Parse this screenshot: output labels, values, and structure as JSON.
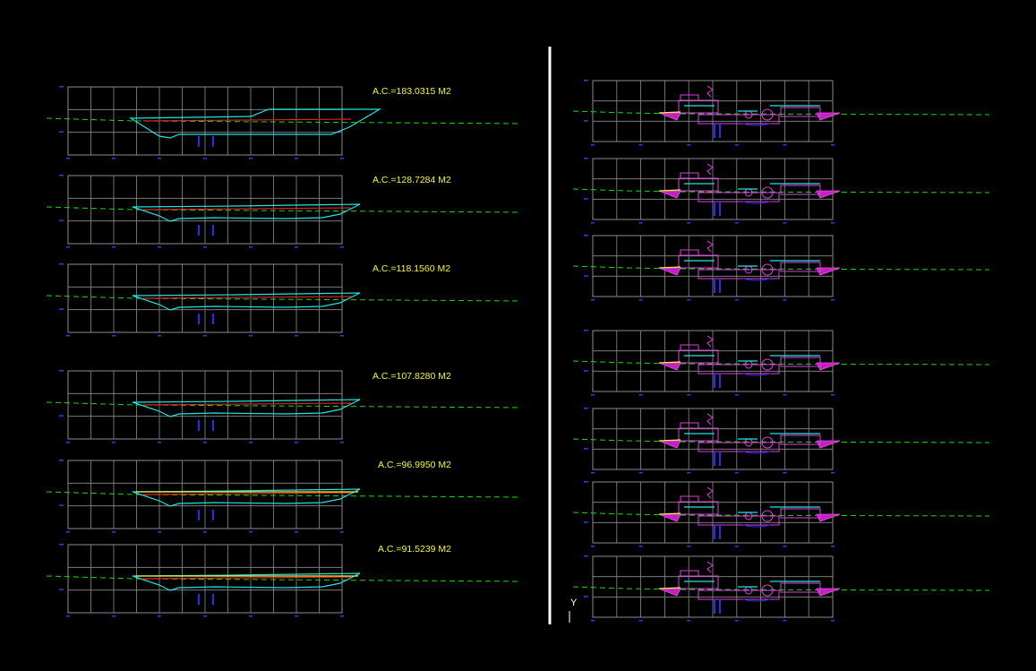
{
  "drawing": {
    "background": "#000000",
    "colors": {
      "grid": "#8c8c8c",
      "ground": "#19d819",
      "section_outline": "#22e3e3",
      "rasante": "#e32222",
      "fill_line": "#f0f03c",
      "labels": "#f5f53c",
      "detail": "#e040e0",
      "annotation": "#2a2af0"
    },
    "left_sections": [
      {
        "label": "A.C.=183.0315  M2"
      },
      {
        "label": "A.C.=128.7284  M2"
      },
      {
        "label": "A.C.=118.1560  M2"
      },
      {
        "label": "A.C.=107.8280  M2"
      },
      {
        "label": "A.C.=96.9950  M2"
      },
      {
        "label": "A.C.=91.5239  M2"
      }
    ],
    "right_sections_count": 7,
    "ucs_icon": {
      "axis_label": "Y"
    }
  }
}
